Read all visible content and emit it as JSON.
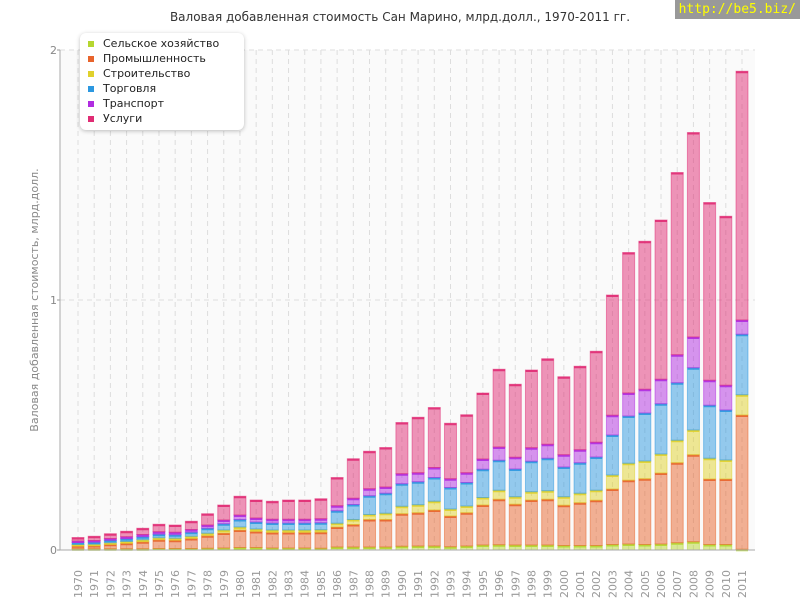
{
  "chart_data": {
    "type": "bar",
    "stacked": true,
    "title": "Валовая добавленная стоимость Сан Марино, млрд.долл., 1970-2011 гг.",
    "xlabel": "",
    "ylabel": "Валовая добавленная стоимость, млрд.долл.",
    "ylim": [
      0,
      2
    ],
    "yticks": [
      "0",
      "1",
      "2"
    ],
    "grid": true,
    "legend_position": "top-left",
    "categories": [
      "1970",
      "1971",
      "1972",
      "1973",
      "1974",
      "1975",
      "1976",
      "1977",
      "1978",
      "1979",
      "1980",
      "1981",
      "1982",
      "1983",
      "1984",
      "1985",
      "1986",
      "1987",
      "1988",
      "1989",
      "1990",
      "1991",
      "1992",
      "1993",
      "1994",
      "1995",
      "1996",
      "1997",
      "1998",
      "1999",
      "2000",
      "2001",
      "2002",
      "2003",
      "2004",
      "2005",
      "2006",
      "2007",
      "2008",
      "2009",
      "2010",
      "2011"
    ],
    "series": [
      {
        "name": "Сельское хозяйство",
        "color": "#b5d630",
        "values": [
          0.005,
          0.005,
          0.005,
          0.005,
          0.005,
          0.006,
          0.006,
          0.006,
          0.007,
          0.008,
          0.01,
          0.01,
          0.008,
          0.008,
          0.008,
          0.007,
          0.012,
          0.012,
          0.012,
          0.012,
          0.015,
          0.016,
          0.016,
          0.013,
          0.016,
          0.02,
          0.021,
          0.02,
          0.02,
          0.02,
          0.018,
          0.018,
          0.018,
          0.022,
          0.024,
          0.022,
          0.024,
          0.029,
          0.033,
          0.022,
          0.022,
          0.003
        ]
      },
      {
        "name": "Промышленность",
        "color": "#e8642c",
        "values": [
          0.012,
          0.013,
          0.018,
          0.022,
          0.028,
          0.035,
          0.033,
          0.04,
          0.05,
          0.06,
          0.07,
          0.064,
          0.062,
          0.062,
          0.062,
          0.064,
          0.08,
          0.09,
          0.11,
          0.11,
          0.13,
          0.133,
          0.144,
          0.123,
          0.133,
          0.16,
          0.182,
          0.163,
          0.18,
          0.183,
          0.161,
          0.171,
          0.181,
          0.222,
          0.255,
          0.263,
          0.284,
          0.32,
          0.348,
          0.262,
          0.262,
          0.537
        ]
      },
      {
        "name": "Строительство",
        "color": "#e0d12c",
        "values": [
          0.005,
          0.005,
          0.006,
          0.007,
          0.008,
          0.008,
          0.008,
          0.009,
          0.01,
          0.012,
          0.012,
          0.01,
          0.01,
          0.01,
          0.01,
          0.01,
          0.015,
          0.02,
          0.02,
          0.025,
          0.03,
          0.032,
          0.035,
          0.028,
          0.027,
          0.03,
          0.036,
          0.03,
          0.033,
          0.034,
          0.034,
          0.038,
          0.04,
          0.056,
          0.068,
          0.071,
          0.076,
          0.09,
          0.099,
          0.083,
          0.076,
          0.081
        ]
      },
      {
        "name": "Торговля",
        "color": "#2c98e0",
        "values": [
          0.008,
          0.009,
          0.01,
          0.011,
          0.012,
          0.014,
          0.014,
          0.016,
          0.02,
          0.025,
          0.03,
          0.028,
          0.028,
          0.028,
          0.028,
          0.028,
          0.05,
          0.06,
          0.075,
          0.08,
          0.09,
          0.092,
          0.095,
          0.086,
          0.094,
          0.113,
          0.12,
          0.111,
          0.122,
          0.13,
          0.119,
          0.122,
          0.133,
          0.16,
          0.189,
          0.192,
          0.201,
          0.23,
          0.249,
          0.212,
          0.2,
          0.242
        ]
      },
      {
        "name": "Транспорт",
        "color": "#b02ce0",
        "values": [
          0.006,
          0.006,
          0.007,
          0.008,
          0.009,
          0.01,
          0.01,
          0.011,
          0.013,
          0.015,
          0.018,
          0.016,
          0.015,
          0.015,
          0.015,
          0.016,
          0.02,
          0.025,
          0.028,
          0.025,
          0.04,
          0.036,
          0.04,
          0.035,
          0.039,
          0.041,
          0.053,
          0.047,
          0.054,
          0.056,
          0.049,
          0.052,
          0.059,
          0.079,
          0.092,
          0.095,
          0.098,
          0.112,
          0.123,
          0.1,
          0.099,
          0.057
        ]
      },
      {
        "name": "Услуги",
        "color": "#e02c74",
        "values": [
          0.014,
          0.017,
          0.019,
          0.022,
          0.025,
          0.03,
          0.029,
          0.033,
          0.045,
          0.06,
          0.075,
          0.072,
          0.072,
          0.077,
          0.077,
          0.08,
          0.113,
          0.158,
          0.15,
          0.158,
          0.205,
          0.222,
          0.24,
          0.222,
          0.232,
          0.264,
          0.311,
          0.292,
          0.311,
          0.342,
          0.312,
          0.334,
          0.364,
          0.481,
          0.562,
          0.592,
          0.637,
          0.729,
          0.818,
          0.711,
          0.676,
          0.995
        ]
      }
    ]
  },
  "watermark": "http://be5.biz/"
}
